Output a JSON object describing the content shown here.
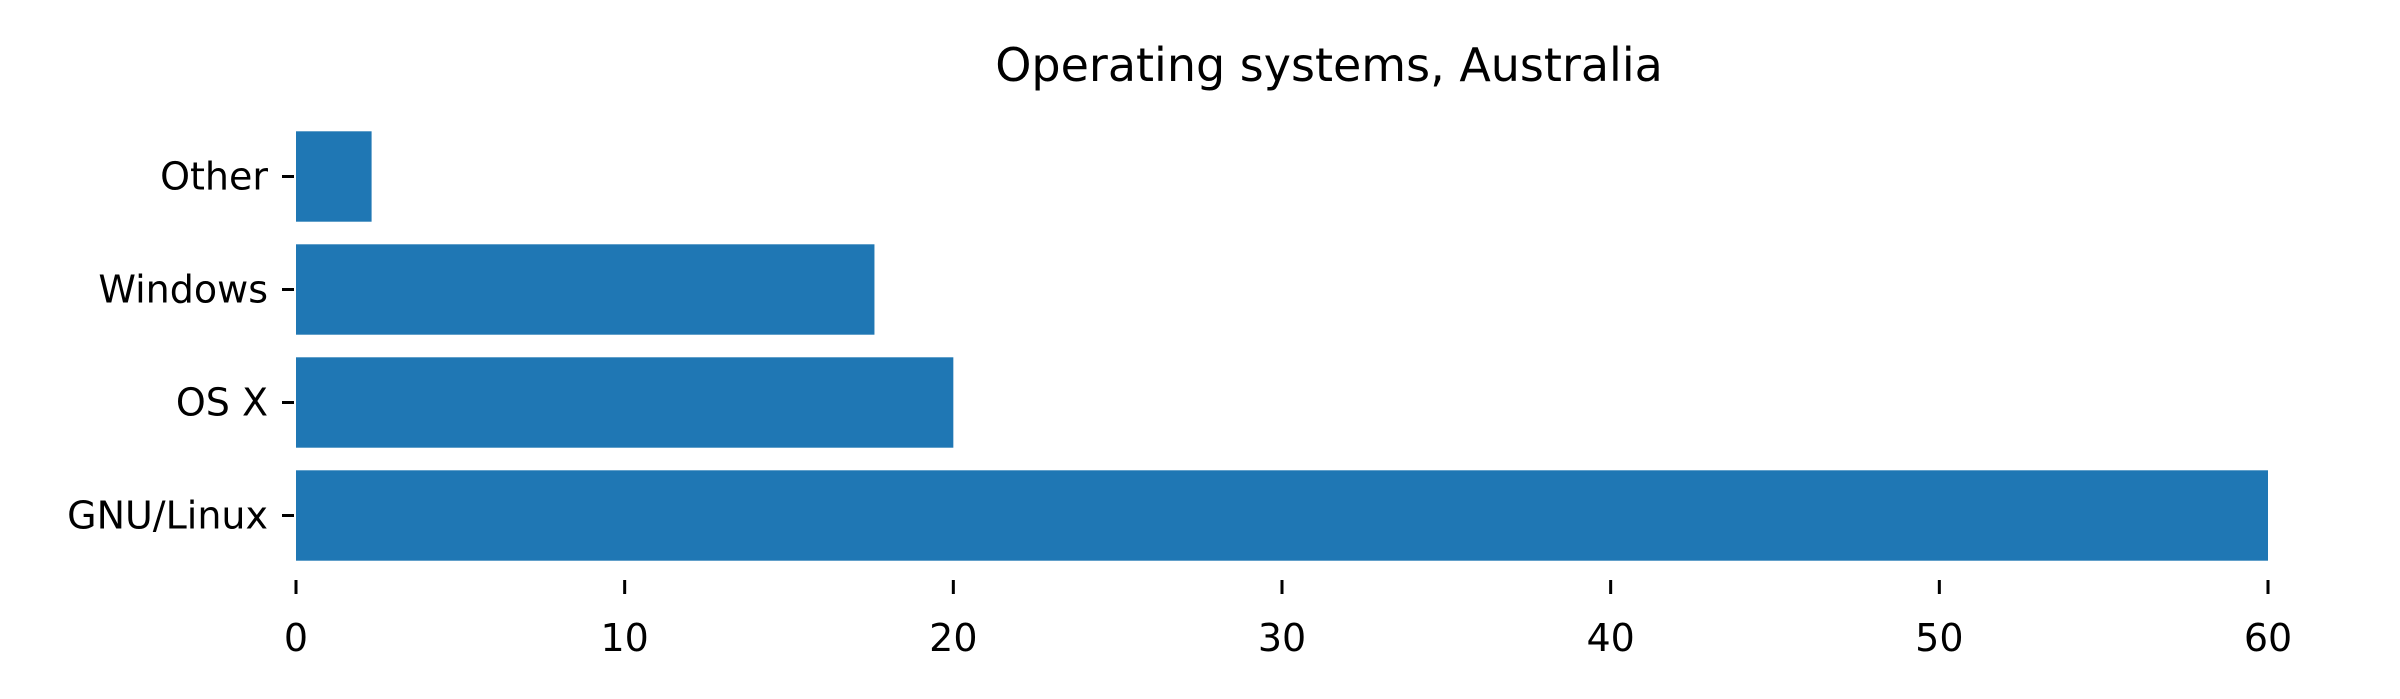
{
  "chart_data": {
    "type": "bar",
    "orientation": "horizontal",
    "title": "Operating systems, Australia",
    "xlabel": "",
    "ylabel": "",
    "categories": [
      "GNU/Linux",
      "OS X",
      "Windows",
      "Other"
    ],
    "values": [
      60,
      20,
      17.6,
      2.3
    ],
    "xlim": [
      0,
      60
    ],
    "xticks": [
      0,
      10,
      20,
      30,
      40,
      50,
      60
    ],
    "grid": false,
    "bar_color": "#1f77b4"
  }
}
